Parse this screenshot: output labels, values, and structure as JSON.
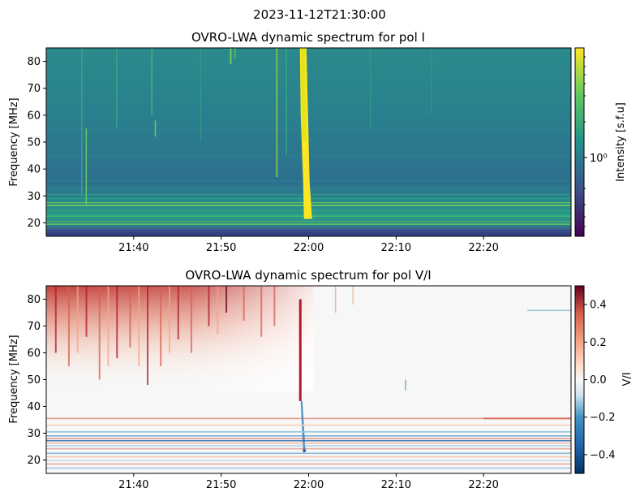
{
  "figure": {
    "suptitle": "2023-11-12T21:30:00"
  },
  "chart_data": [
    {
      "type": "heatmap",
      "title": "OVRO-LWA dynamic spectrum for pol I",
      "xlabel": "",
      "ylabel": "Frequency [MHz]",
      "xlim": [
        "21:30",
        "22:30"
      ],
      "ylim": [
        15,
        85
      ],
      "x_ticks": [
        "21:40",
        "21:50",
        "22:00",
        "22:10",
        "22:20"
      ],
      "y_ticks": [
        20,
        30,
        40,
        50,
        60,
        70,
        80
      ],
      "colormap": "viridis",
      "color_scale": "log",
      "colorbar": {
        "label": "Intensity [s.f.u]",
        "tick_labels": [
          "10⁰"
        ],
        "ticks": [
          1
        ]
      },
      "features": [
        {
          "kind": "burst",
          "time": "21:59-22:00",
          "freq_range": [
            21,
            85
          ],
          "intensity": "saturated"
        },
        {
          "kind": "horizontal_bands",
          "freq_range": [
            15,
            35
          ],
          "note": "bright RFI bands below ~35 MHz"
        }
      ]
    },
    {
      "type": "heatmap",
      "title": "OVRO-LWA dynamic spectrum for pol V/I",
      "xlabel": "",
      "ylabel": "Frequency [MHz]",
      "xlim": [
        "21:30",
        "22:30"
      ],
      "ylim": [
        15,
        85
      ],
      "x_ticks": [
        "21:40",
        "21:50",
        "22:00",
        "22:10",
        "22:20"
      ],
      "y_ticks": [
        20,
        30,
        40,
        50,
        60,
        70,
        80
      ],
      "colormap": "RdBu_r",
      "colorbar": {
        "label": "V/I",
        "ticks": [
          0.4,
          0.2,
          0.0,
          -0.2,
          -0.4
        ],
        "tick_labels": [
          "0.4",
          "0.2",
          "0.0",
          "−0.2",
          "−0.4"
        ],
        "range": [
          -0.5,
          0.5
        ]
      }
    }
  ]
}
